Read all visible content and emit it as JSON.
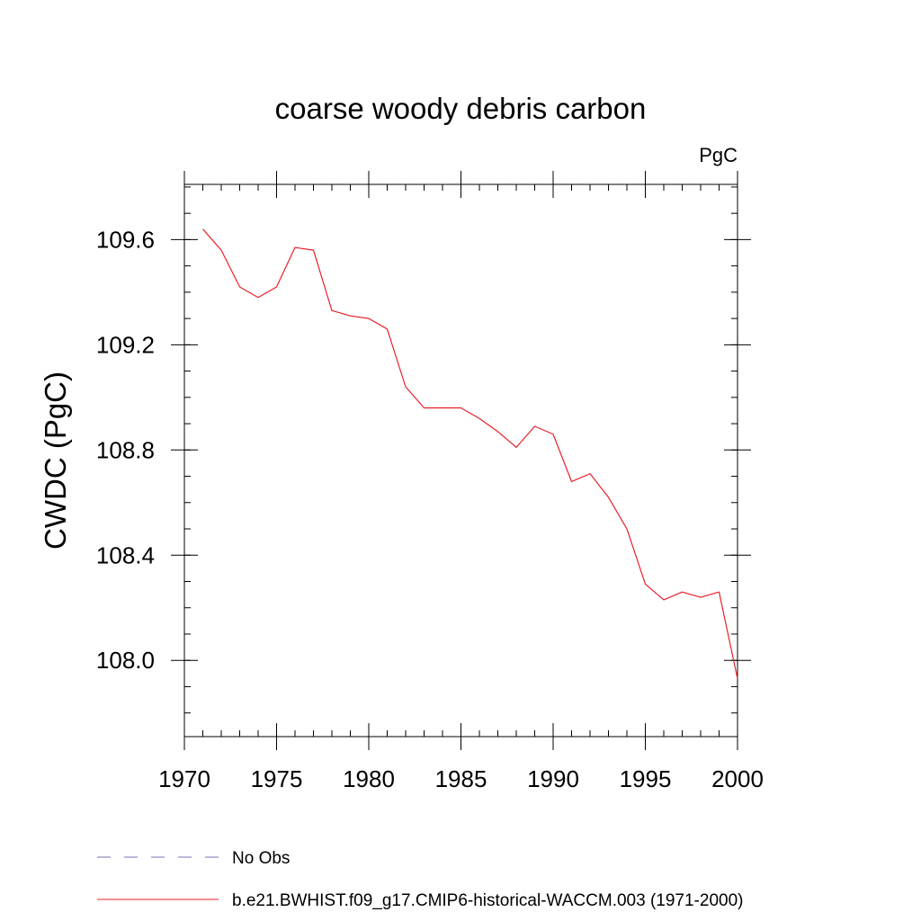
{
  "chart_data": {
    "type": "line",
    "title": "coarse woody debris carbon",
    "units_label": "PgC",
    "ylabel": "CWDC  (PgC)",
    "xlabel": "",
    "xlim": [
      1970,
      2000
    ],
    "ylim": [
      107.71,
      109.81
    ],
    "x_ticks": [
      1970,
      1975,
      1980,
      1985,
      1990,
      1995,
      2000
    ],
    "y_ticks": [
      108.0,
      108.4,
      108.8,
      109.2,
      109.6
    ],
    "y_tick_labels": [
      "108.0",
      "108.4",
      "108.8",
      "109.2",
      "109.6"
    ],
    "x_minor_step": 1,
    "y_minor_step": 0.1,
    "grid": false,
    "legend_position": "bottom",
    "legend": [
      {
        "label": "No Obs",
        "color": "#7b6fb5",
        "dash": "dashed"
      },
      {
        "label": "b.e21.BWHIST.f09_g17.CMIP6-historical-WACCM.003 (1971-2000)",
        "color": "#e8202a",
        "dash": "solid"
      }
    ],
    "series": [
      {
        "name": "b.e21.BWHIST.f09_g17.CMIP6-historical-WACCM.003 (1971-2000)",
        "color": "#e8202a",
        "x": [
          1971,
          1972,
          1973,
          1974,
          1975,
          1976,
          1977,
          1978,
          1979,
          1980,
          1981,
          1982,
          1983,
          1984,
          1985,
          1986,
          1987,
          1988,
          1989,
          1990,
          1991,
          1992,
          1993,
          1994,
          1995,
          1996,
          1997,
          1998,
          1999,
          2000
        ],
        "values": [
          109.64,
          109.56,
          109.42,
          109.38,
          109.42,
          109.57,
          109.56,
          109.33,
          109.31,
          109.3,
          109.26,
          109.04,
          108.96,
          108.96,
          108.96,
          108.92,
          108.87,
          108.81,
          108.89,
          108.86,
          108.68,
          108.71,
          108.62,
          108.5,
          108.29,
          108.23,
          108.26,
          108.24,
          108.26,
          107.93
        ]
      }
    ]
  }
}
